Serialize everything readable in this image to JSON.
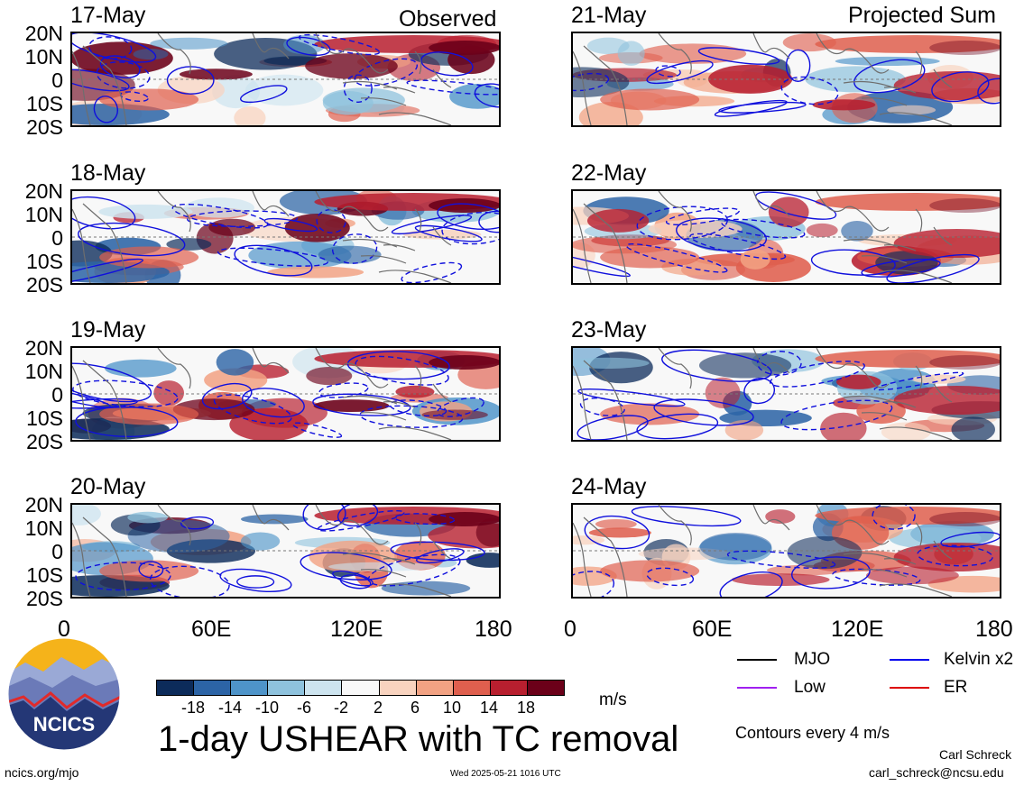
{
  "titles": {
    "left": "Observed",
    "right": "Projected Sum"
  },
  "panels_left": [
    "17-May",
    "18-May",
    "19-May",
    "20-May"
  ],
  "panels_right": [
    "21-May",
    "22-May",
    "23-May",
    "24-May"
  ],
  "lat_ticks": [
    "20N",
    "10N",
    "0",
    "10S",
    "20S"
  ],
  "lon_ticks": [
    "0",
    "60E",
    "120E",
    "180"
  ],
  "colorbar": {
    "labels": [
      "-18",
      "-14",
      "-10",
      "-6",
      "-2",
      "2",
      "6",
      "10",
      "14",
      "18"
    ],
    "colors": [
      "#0c2b5a",
      "#2c64a6",
      "#4e94c9",
      "#8ec2dd",
      "#cde4ef",
      "#f8f8f8",
      "#f8d3bf",
      "#f2a283",
      "#df5f4e",
      "#b81f2f",
      "#6b0019"
    ],
    "unit": "m/s"
  },
  "legend": [
    {
      "label": "MJO",
      "color": "#000000"
    },
    {
      "label": "Kelvin x2",
      "color": "#0000ee"
    },
    {
      "label": "Low",
      "color": "#a020f0"
    },
    {
      "label": "ER",
      "color": "#dd0000"
    }
  ],
  "contour_note": "Contours every 4 m/s",
  "main_title": "1-day USHEAR with TC removal",
  "author": "Carl Schreck",
  "email": "carl_schreck@ncsu.edu",
  "site": "ncics.org/mjo",
  "timestamp": "Wed 2025-05-21 1016 UTC",
  "logo_text": "NCICS"
}
